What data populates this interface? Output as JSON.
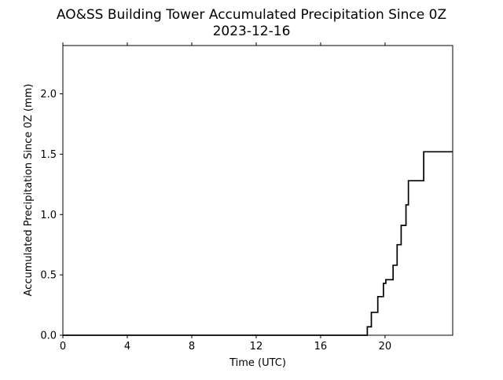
{
  "chart_data": {
    "type": "line",
    "title": "AO&SS Building Tower Accumulated Precipitation Since 0Z",
    "subtitle": "2023-12-16",
    "xlabel": "Time (UTC)",
    "ylabel": "Accumulated Precipitation Since 0Z (mm)",
    "xlim": [
      0,
      24.2
    ],
    "ylim": [
      0,
      2.4
    ],
    "x_ticks": [
      0,
      4,
      8,
      12,
      16,
      20
    ],
    "y_ticks": [
      0.0,
      0.5,
      1.0,
      1.5,
      2.0
    ],
    "x_tick_labels": [
      "0",
      "4",
      "8",
      "12",
      "16",
      "20"
    ],
    "y_tick_labels": [
      "0.0",
      "0.5",
      "1.0",
      "1.5",
      "2.0"
    ],
    "grid": false,
    "series": [
      {
        "color": "#000000",
        "step": true,
        "x": [
          0,
          18.9,
          19.15,
          19.55,
          19.9,
          20.05,
          20.5,
          20.75,
          21.0,
          21.3,
          21.45,
          22.4,
          24.2
        ],
        "y": [
          0.0,
          0.07,
          0.19,
          0.32,
          0.43,
          0.46,
          0.58,
          0.75,
          0.91,
          1.08,
          1.28,
          1.52,
          1.52
        ]
      }
    ]
  }
}
